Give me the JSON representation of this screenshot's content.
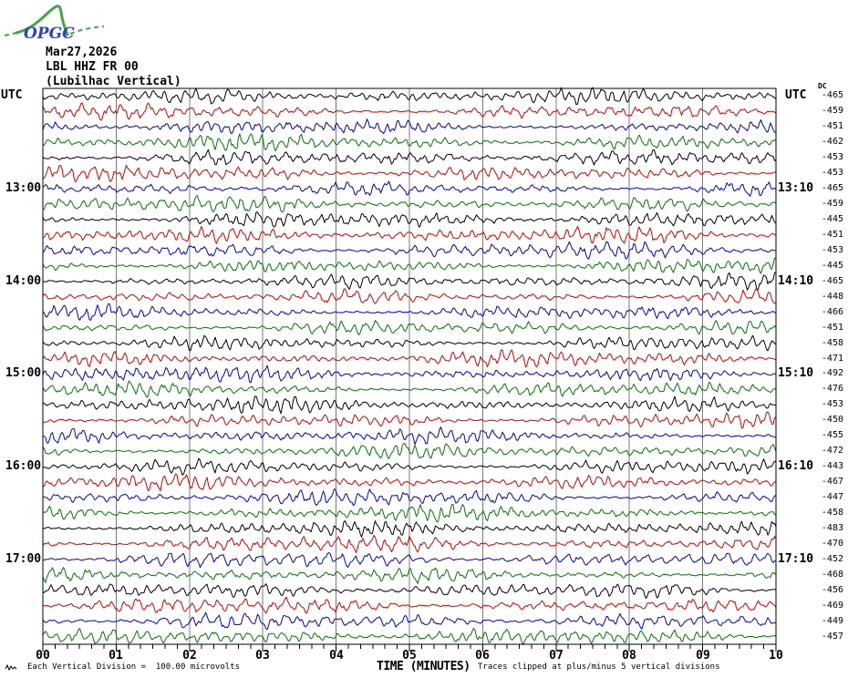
{
  "logo": {
    "org": "OPGC"
  },
  "header": {
    "date": "Mar27,2026",
    "channel": "LBL HHZ FR 00",
    "station_description": "(Lubilhac Vertical)"
  },
  "columns": {
    "left_header": "UTC",
    "right_header": "UTC",
    "dc_header": "DC"
  },
  "footer": {
    "scale_note": "Each Vertical Division =  100.00 microvolts",
    "x_axis_title": "TIME (MINUTES)",
    "clip_note": "Traces clipped at plus/minus 5 vertical divisions"
  },
  "colors": {
    "trace_map": {
      "black": "#000000",
      "red": "#d40000",
      "blue": "#0000cc",
      "green": "#007800"
    },
    "grid": "#7a7a7a",
    "frame": "#000000",
    "logo_green": "#44a544",
    "logo_blue": "#3140c0"
  },
  "chart_data": {
    "type": "line",
    "kind": "helicorder-seismogram",
    "title": "LBL HHZ FR 00 (Lubilhac Vertical) Mar27,2026",
    "date": "Mar27,2026",
    "station": "LBL HHZ FR 00",
    "station_description": "(Lubilhac Vertical)",
    "timezone": "UTC",
    "xlabel": "TIME (MINUTES)",
    "minutes_per_row": 10,
    "x_ticks": [
      "00",
      "01",
      "02",
      "03",
      "04",
      "05",
      "06",
      "07",
      "08",
      "09",
      "10"
    ],
    "x_minor_ticks_per_minute": 6,
    "grid": "vertical-minute-lines",
    "dc_units": "DC offset per trace (right column)",
    "rows": [
      {
        "start": "12:00",
        "end": "12:10",
        "dc": -465,
        "color": "black",
        "left_label": null,
        "right_label": null
      },
      {
        "start": "12:10",
        "end": "12:20",
        "dc": -459,
        "color": "red",
        "left_label": null,
        "right_label": null
      },
      {
        "start": "12:20",
        "end": "12:30",
        "dc": -451,
        "color": "blue",
        "left_label": null,
        "right_label": null
      },
      {
        "start": "12:30",
        "end": "12:40",
        "dc": -462,
        "color": "green",
        "left_label": null,
        "right_label": null
      },
      {
        "start": "12:40",
        "end": "12:50",
        "dc": -453,
        "color": "black",
        "left_label": null,
        "right_label": null
      },
      {
        "start": "12:50",
        "end": "13:00",
        "dc": -453,
        "color": "red",
        "left_label": null,
        "right_label": null
      },
      {
        "start": "13:00",
        "end": "13:10",
        "dc": -465,
        "color": "blue",
        "left_label": "13:00",
        "right_label": "13:10"
      },
      {
        "start": "13:10",
        "end": "13:20",
        "dc": -459,
        "color": "green",
        "left_label": null,
        "right_label": null
      },
      {
        "start": "13:20",
        "end": "13:30",
        "dc": -445,
        "color": "black",
        "left_label": null,
        "right_label": null
      },
      {
        "start": "13:30",
        "end": "13:40",
        "dc": -451,
        "color": "red",
        "left_label": null,
        "right_label": null
      },
      {
        "start": "13:40",
        "end": "13:50",
        "dc": -453,
        "color": "blue",
        "left_label": null,
        "right_label": null
      },
      {
        "start": "13:50",
        "end": "14:00",
        "dc": -445,
        "color": "green",
        "left_label": null,
        "right_label": null
      },
      {
        "start": "14:00",
        "end": "14:10",
        "dc": -465,
        "color": "black",
        "left_label": "14:00",
        "right_label": "14:10"
      },
      {
        "start": "14:10",
        "end": "14:20",
        "dc": -448,
        "color": "red",
        "left_label": null,
        "right_label": null
      },
      {
        "start": "14:20",
        "end": "14:30",
        "dc": -466,
        "color": "blue",
        "left_label": null,
        "right_label": null
      },
      {
        "start": "14:30",
        "end": "14:40",
        "dc": -451,
        "color": "green",
        "left_label": null,
        "right_label": null
      },
      {
        "start": "14:40",
        "end": "14:50",
        "dc": -458,
        "color": "black",
        "left_label": null,
        "right_label": null
      },
      {
        "start": "14:50",
        "end": "15:00",
        "dc": -471,
        "color": "red",
        "left_label": null,
        "right_label": null
      },
      {
        "start": "15:00",
        "end": "15:10",
        "dc": -492,
        "color": "blue",
        "left_label": "15:00",
        "right_label": "15:10"
      },
      {
        "start": "15:10",
        "end": "15:20",
        "dc": -476,
        "color": "green",
        "left_label": null,
        "right_label": null
      },
      {
        "start": "15:20",
        "end": "15:30",
        "dc": -453,
        "color": "black",
        "left_label": null,
        "right_label": null
      },
      {
        "start": "15:30",
        "end": "15:40",
        "dc": -450,
        "color": "red",
        "left_label": null,
        "right_label": null
      },
      {
        "start": "15:40",
        "end": "15:50",
        "dc": -455,
        "color": "blue",
        "left_label": null,
        "right_label": null
      },
      {
        "start": "15:50",
        "end": "16:00",
        "dc": -472,
        "color": "green",
        "left_label": null,
        "right_label": null
      },
      {
        "start": "16:00",
        "end": "16:10",
        "dc": -443,
        "color": "black",
        "left_label": "16:00",
        "right_label": "16:10"
      },
      {
        "start": "16:10",
        "end": "16:20",
        "dc": -467,
        "color": "red",
        "left_label": null,
        "right_label": null
      },
      {
        "start": "16:20",
        "end": "16:30",
        "dc": -447,
        "color": "blue",
        "left_label": null,
        "right_label": null
      },
      {
        "start": "16:30",
        "end": "16:40",
        "dc": -458,
        "color": "green",
        "left_label": null,
        "right_label": null
      },
      {
        "start": "16:40",
        "end": "16:50",
        "dc": -483,
        "color": "black",
        "left_label": null,
        "right_label": null
      },
      {
        "start": "16:50",
        "end": "17:00",
        "dc": -470,
        "color": "red",
        "left_label": null,
        "right_label": null
      },
      {
        "start": "17:00",
        "end": "17:10",
        "dc": -452,
        "color": "blue",
        "left_label": "17:00",
        "right_label": "17:10"
      },
      {
        "start": "17:10",
        "end": "17:20",
        "dc": -468,
        "color": "green",
        "left_label": null,
        "right_label": null
      },
      {
        "start": "17:20",
        "end": "17:30",
        "dc": -456,
        "color": "black",
        "left_label": null,
        "right_label": null
      },
      {
        "start": "17:30",
        "end": "17:40",
        "dc": -469,
        "color": "red",
        "left_label": null,
        "right_label": null
      },
      {
        "start": "17:40",
        "end": "17:50",
        "dc": -449,
        "color": "blue",
        "left_label": null,
        "right_label": null
      },
      {
        "start": "17:50",
        "end": "18:00",
        "dc": -457,
        "color": "green",
        "left_label": null,
        "right_label": null
      }
    ]
  }
}
